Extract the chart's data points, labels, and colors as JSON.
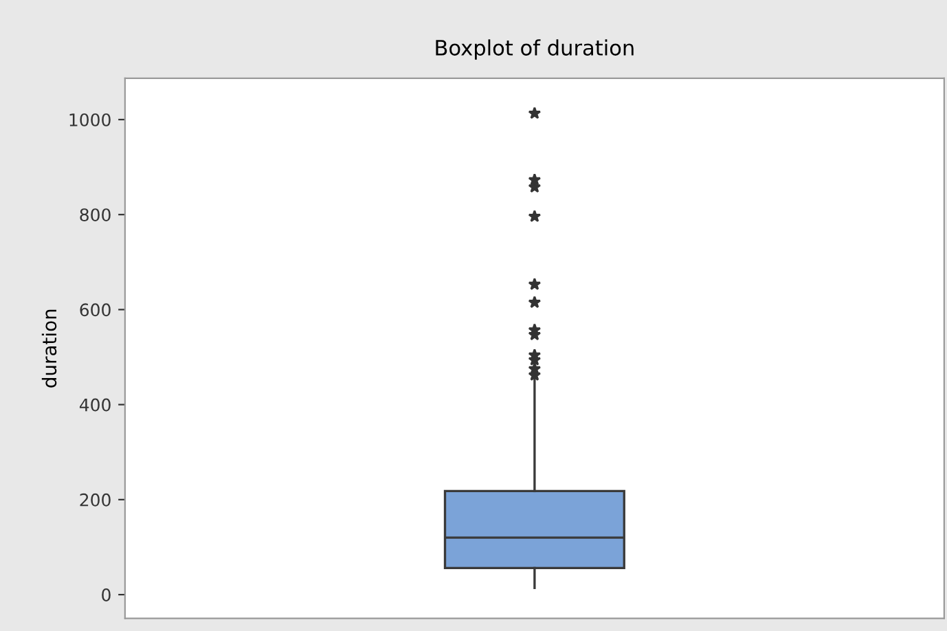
{
  "chart_data": {
    "type": "box",
    "title": "Boxplot of duration",
    "ylabel": "duration",
    "categories": [
      null
    ],
    "series": [
      {
        "color": "#7ba3d8",
        "boxes": [
          {
            "low": 14,
            "q1": 56,
            "median": 120,
            "q3": 218,
            "high": 456,
            "outliers": [
              1013,
              873,
              858,
              796,
              653,
              615,
              557,
              547,
              504,
              494,
              475,
              462
            ]
          }
        ]
      }
    ],
    "ylim": [
      -50,
      1087
    ],
    "yticks": [
      0,
      200,
      400,
      600,
      800,
      1000
    ],
    "tick_labels": "y",
    "grid": false,
    "marker": "star"
  }
}
